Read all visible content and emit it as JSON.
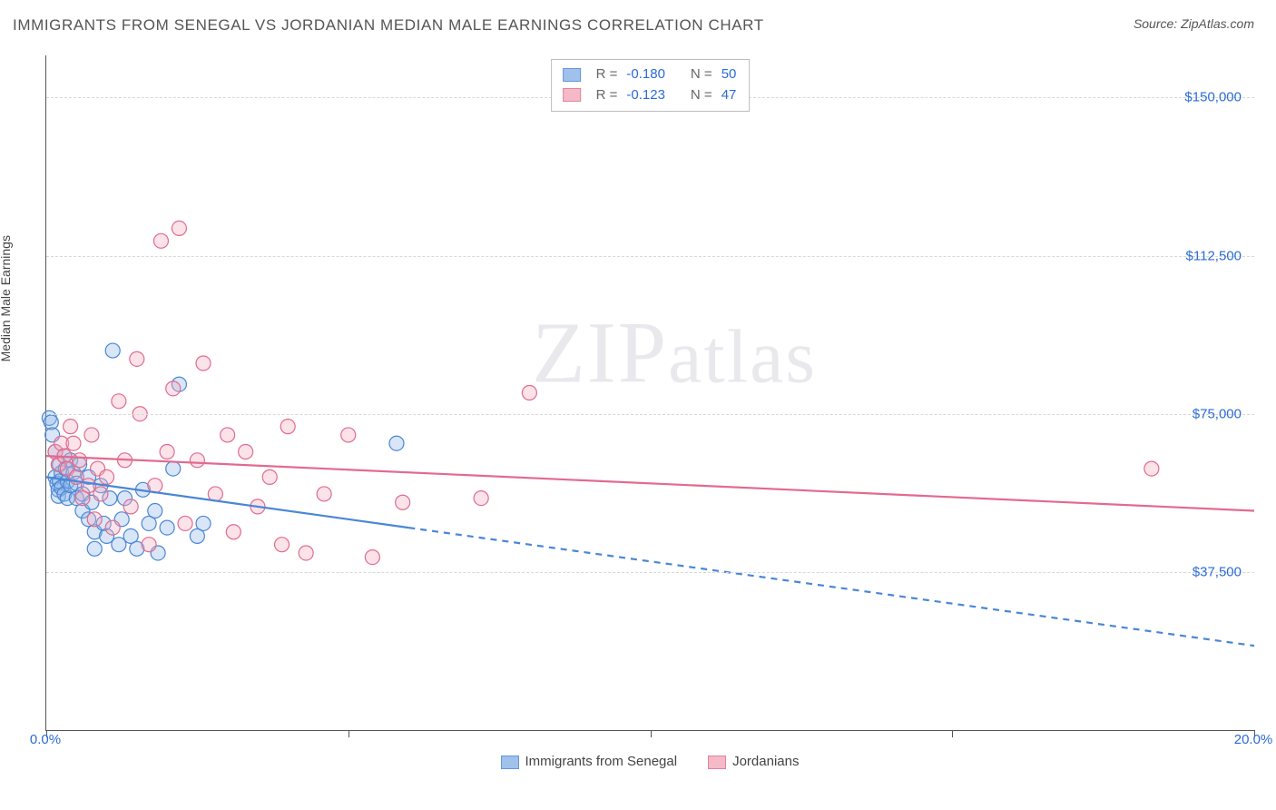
{
  "header": {
    "title": "IMMIGRANTS FROM SENEGAL VS JORDANIAN MEDIAN MALE EARNINGS CORRELATION CHART",
    "source": "Source: ZipAtlas.com"
  },
  "watermark": {
    "zip": "ZIP",
    "atlas": "atlas"
  },
  "chart": {
    "type": "scatter-with-trend",
    "ylabel": "Median Male Earnings",
    "xlim": [
      0,
      20
    ],
    "ylim": [
      0,
      160000
    ],
    "x_tick_positions": [
      0,
      5,
      10,
      15,
      20
    ],
    "x_tick_labels_shown": {
      "0": "0.0%",
      "20": "20.0%"
    },
    "y_tick_positions": [
      37500,
      75000,
      112500,
      150000
    ],
    "y_tick_labels": [
      "$37,500",
      "$75,000",
      "$112,500",
      "$150,000"
    ],
    "grid_color": "#d8d8d8",
    "axis_color": "#555555",
    "background_color": "#ffffff",
    "tick_label_color": "#2b6bd6",
    "label_color": "#444444",
    "marker_radius": 8,
    "marker_stroke_width": 1.2,
    "marker_fill_opacity": 0.35,
    "trend_line_width": 2.2,
    "dash_pattern": "7 6",
    "series": [
      {
        "id": "senegal",
        "label": "Immigrants from Senegal",
        "color_stroke": "#4a86d6",
        "color_fill": "#8fb7e8",
        "r_value": "-0.180",
        "n_value": "50",
        "trend": {
          "x1": 0,
          "y1": 60000,
          "x2": 6,
          "y2": 48000,
          "extend_x2": 20,
          "extend_y2": 20000
        },
        "points": [
          [
            0.05,
            74000
          ],
          [
            0.08,
            73000
          ],
          [
            0.1,
            70000
          ],
          [
            0.15,
            66000
          ],
          [
            0.15,
            60000
          ],
          [
            0.18,
            58500
          ],
          [
            0.2,
            57000
          ],
          [
            0.2,
            55500
          ],
          [
            0.22,
            59000
          ],
          [
            0.22,
            63000
          ],
          [
            0.25,
            61000
          ],
          [
            0.25,
            57500
          ],
          [
            0.3,
            65000
          ],
          [
            0.3,
            56000
          ],
          [
            0.32,
            62000
          ],
          [
            0.35,
            59000
          ],
          [
            0.35,
            55000
          ],
          [
            0.4,
            58000
          ],
          [
            0.4,
            64000
          ],
          [
            0.45,
            61000
          ],
          [
            0.5,
            55000
          ],
          [
            0.5,
            58500
          ],
          [
            0.55,
            63000
          ],
          [
            0.6,
            56000
          ],
          [
            0.6,
            52000
          ],
          [
            0.7,
            60000
          ],
          [
            0.7,
            50000
          ],
          [
            0.75,
            54000
          ],
          [
            0.8,
            47000
          ],
          [
            0.8,
            43000
          ],
          [
            0.9,
            58000
          ],
          [
            0.95,
            49000
          ],
          [
            1.0,
            46000
          ],
          [
            1.05,
            55000
          ],
          [
            1.1,
            90000
          ],
          [
            1.2,
            44000
          ],
          [
            1.25,
            50000
          ],
          [
            1.3,
            55000
          ],
          [
            1.4,
            46000
          ],
          [
            1.5,
            43000
          ],
          [
            1.6,
            57000
          ],
          [
            1.7,
            49000
          ],
          [
            1.8,
            52000
          ],
          [
            1.85,
            42000
          ],
          [
            2.0,
            48000
          ],
          [
            2.1,
            62000
          ],
          [
            2.2,
            82000
          ],
          [
            2.5,
            46000
          ],
          [
            2.6,
            49000
          ],
          [
            5.8,
            68000
          ]
        ]
      },
      {
        "id": "jordanian",
        "label": "Jordanians",
        "color_stroke": "#e26a8e",
        "color_fill": "#f3aebf",
        "r_value": "-0.123",
        "n_value": "47",
        "trend": {
          "x1": 0,
          "y1": 65000,
          "x2": 20,
          "y2": 52000
        },
        "points": [
          [
            0.15,
            66000
          ],
          [
            0.2,
            63000
          ],
          [
            0.25,
            68000
          ],
          [
            0.3,
            65000
          ],
          [
            0.35,
            62000
          ],
          [
            0.4,
            72000
          ],
          [
            0.45,
            68000
          ],
          [
            0.5,
            60000
          ],
          [
            0.55,
            64000
          ],
          [
            0.6,
            55000
          ],
          [
            0.7,
            58000
          ],
          [
            0.75,
            70000
          ],
          [
            0.8,
            50000
          ],
          [
            0.85,
            62000
          ],
          [
            0.9,
            56000
          ],
          [
            1.0,
            60000
          ],
          [
            1.1,
            48000
          ],
          [
            1.2,
            78000
          ],
          [
            1.3,
            64000
          ],
          [
            1.4,
            53000
          ],
          [
            1.5,
            88000
          ],
          [
            1.55,
            75000
          ],
          [
            1.7,
            44000
          ],
          [
            1.8,
            58000
          ],
          [
            1.9,
            116000
          ],
          [
            2.0,
            66000
          ],
          [
            2.1,
            81000
          ],
          [
            2.2,
            119000
          ],
          [
            2.3,
            49000
          ],
          [
            2.5,
            64000
          ],
          [
            2.6,
            87000
          ],
          [
            2.8,
            56000
          ],
          [
            3.0,
            70000
          ],
          [
            3.1,
            47000
          ],
          [
            3.3,
            66000
          ],
          [
            3.5,
            53000
          ],
          [
            3.7,
            60000
          ],
          [
            3.9,
            44000
          ],
          [
            4.0,
            72000
          ],
          [
            4.3,
            42000
          ],
          [
            4.6,
            56000
          ],
          [
            5.0,
            70000
          ],
          [
            5.4,
            41000
          ],
          [
            5.9,
            54000
          ],
          [
            7.2,
            55000
          ],
          [
            8.0,
            80000
          ],
          [
            18.3,
            62000
          ]
        ]
      }
    ],
    "stats_box": {
      "r_label": "R =",
      "n_label": "N ="
    },
    "bottom_legend": true
  }
}
